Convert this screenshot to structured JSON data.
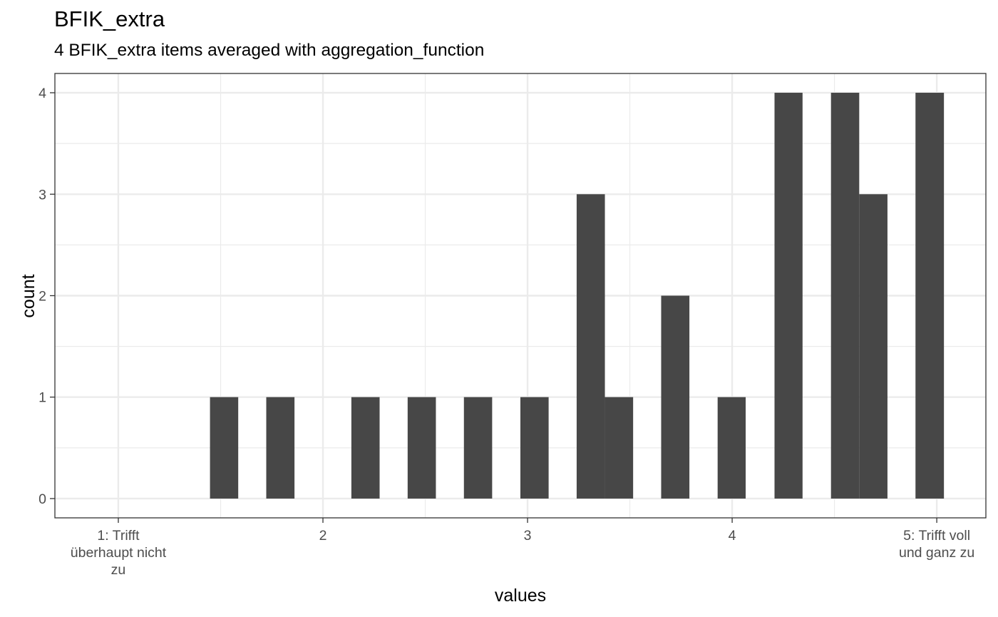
{
  "chart_data": {
    "type": "bar",
    "title": "BFIK_extra",
    "subtitle": "4 BFIK_extra items averaged with aggregation_function",
    "xlabel": "values",
    "ylabel": "count",
    "xlim": [
      0.69,
      5.24
    ],
    "ylim": [
      -0.19,
      4.19
    ],
    "x_ticks": [
      {
        "value": 1,
        "label": [
          "1: Trifft",
          "überhaupt nicht",
          "zu"
        ]
      },
      {
        "value": 2,
        "label": [
          "2"
        ]
      },
      {
        "value": 3,
        "label": [
          "3"
        ]
      },
      {
        "value": 4,
        "label": [
          "4"
        ]
      },
      {
        "value": 5,
        "label": [
          "5: Trifft voll",
          "und ganz zu"
        ]
      }
    ],
    "y_ticks": [
      0,
      1,
      2,
      3,
      4
    ],
    "bin_width": 0.1375,
    "bins": [
      {
        "x_start": 1.448,
        "x_end": 1.586,
        "count": 1
      },
      {
        "x_start": 1.723,
        "x_end": 1.861,
        "count": 1
      },
      {
        "x_start": 2.139,
        "x_end": 2.277,
        "count": 1
      },
      {
        "x_start": 2.414,
        "x_end": 2.552,
        "count": 1
      },
      {
        "x_start": 2.689,
        "x_end": 2.827,
        "count": 1
      },
      {
        "x_start": 2.965,
        "x_end": 3.103,
        "count": 1
      },
      {
        "x_start": 3.24,
        "x_end": 3.378,
        "count": 3
      },
      {
        "x_start": 3.378,
        "x_end": 3.516,
        "count": 1
      },
      {
        "x_start": 3.653,
        "x_end": 3.791,
        "count": 2
      },
      {
        "x_start": 3.929,
        "x_end": 4.066,
        "count": 1
      },
      {
        "x_start": 4.207,
        "x_end": 4.344,
        "count": 4
      },
      {
        "x_start": 4.483,
        "x_end": 4.621,
        "count": 4
      },
      {
        "x_start": 4.621,
        "x_end": 4.759,
        "count": 3
      },
      {
        "x_start": 4.896,
        "x_end": 5.035,
        "count": 4
      }
    ],
    "grid": true,
    "bar_color": "#474747",
    "grid_color": "#ebebeb",
    "panel_border_color": "#333333"
  }
}
